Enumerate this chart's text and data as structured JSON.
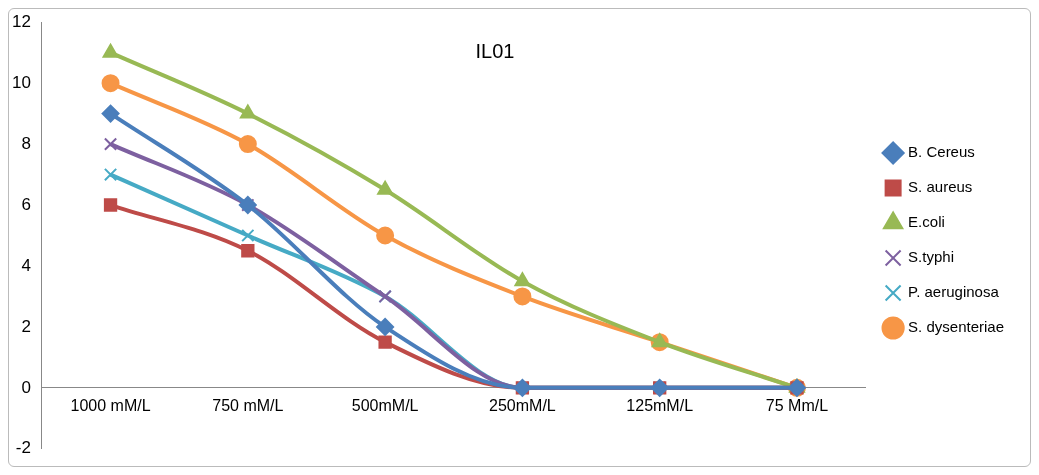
{
  "chart_data": {
    "type": "line",
    "title": "IL01",
    "categories": [
      "1000 mM/L",
      "750 mM/L",
      "500mM/L",
      "250mM/L",
      "125mM/L",
      "75 Mm/L"
    ],
    "series": [
      {
        "name": "B. Cereus",
        "color": "#4a7ebb",
        "marker": "diamond",
        "values": [
          9,
          6,
          2,
          0,
          0,
          0
        ]
      },
      {
        "name": "S. aureus",
        "color": "#be4b48",
        "marker": "square",
        "values": [
          6,
          4.5,
          1.5,
          0,
          0,
          0
        ]
      },
      {
        "name": "E.coli",
        "color": "#98b954",
        "marker": "triangle",
        "values": [
          11,
          9,
          6.5,
          3.5,
          1.5,
          0
        ]
      },
      {
        "name": "S.typhi",
        "color": "#7d60a0",
        "marker": "cross",
        "values": [
          8,
          6,
          3,
          0,
          0,
          0
        ]
      },
      {
        "name": "P. aeruginosa",
        "color": "#46aac5",
        "marker": "cross",
        "values": [
          7,
          5,
          3,
          0,
          0,
          0
        ]
      },
      {
        "name": "S. dysenteriae",
        "color": "#f79646",
        "marker": "circle",
        "values": [
          10,
          8,
          5,
          3,
          1.5,
          0
        ]
      }
    ],
    "ylim": [
      -2,
      12
    ],
    "yticks": [
      -2,
      0,
      2,
      4,
      6,
      8,
      10,
      12
    ],
    "grid": false,
    "legend": "right"
  }
}
